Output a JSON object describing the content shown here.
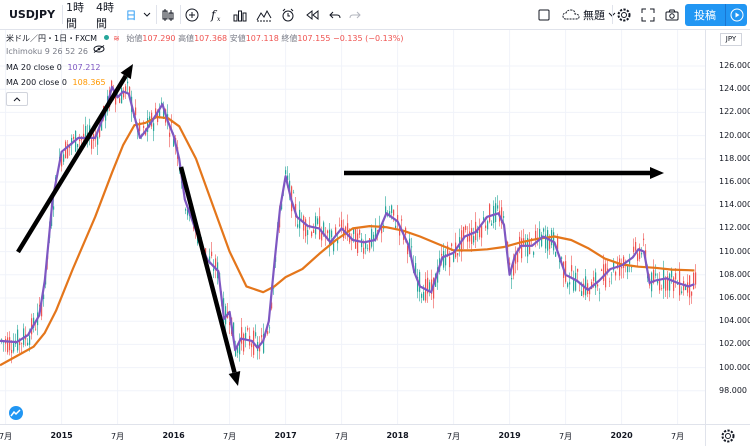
{
  "toolbar": {
    "symbol": "USDJPY",
    "intervals": [
      "1時間",
      "4時間",
      "日"
    ],
    "template_label": "無題",
    "post_label": "投稿"
  },
  "legend": {
    "title": "米ドル／円・1日・FXCM",
    "ohlc": {
      "open_label": "始値",
      "open": "107.290",
      "high_label": "高値",
      "high": "107.368",
      "low_label": "安値",
      "low": "107.118",
      "close_label": "終値",
      "close": "107.155",
      "change": "−0.135 (−0.13%)"
    },
    "indicators": [
      {
        "label": "Ichimoku 9 26 52 26",
        "value": ""
      },
      {
        "label": "MA 20 close 0",
        "value": "107.212"
      },
      {
        "label": "MA 200 close 0",
        "value": "108.365"
      }
    ]
  },
  "price_axis": {
    "currency": "JPY",
    "ticks": [
      "126.000",
      "124.000",
      "122.000",
      "120.000",
      "118.000",
      "116.000",
      "114.000",
      "112.000",
      "110.000",
      "108.000",
      "106.000",
      "104.000",
      "102.000",
      "100.000",
      "98.000"
    ]
  },
  "time_axis": {
    "ticks": [
      {
        "label": "7月",
        "year": 2014.5,
        "bold": false
      },
      {
        "label": "2015",
        "year": 2015.0,
        "bold": true
      },
      {
        "label": "7月",
        "year": 2015.5,
        "bold": false
      },
      {
        "label": "2016",
        "year": 2016.0,
        "bold": true
      },
      {
        "label": "7月",
        "year": 2016.5,
        "bold": false
      },
      {
        "label": "2017",
        "year": 2017.0,
        "bold": true
      },
      {
        "label": "7月",
        "year": 2017.5,
        "bold": false
      },
      {
        "label": "2018",
        "year": 2018.0,
        "bold": true
      },
      {
        "label": "7月",
        "year": 2018.5,
        "bold": false
      },
      {
        "label": "2019",
        "year": 2019.0,
        "bold": true
      },
      {
        "label": "7月",
        "year": 2019.5,
        "bold": false
      },
      {
        "label": "2020",
        "year": 2020.0,
        "bold": true
      },
      {
        "label": "7月",
        "year": 2020.5,
        "bold": false
      }
    ]
  },
  "chart_data": {
    "type": "line",
    "symbol": "USDJPY",
    "ylim": [
      97,
      128
    ],
    "xlim": [
      2014.45,
      2020.7
    ],
    "series": [
      {
        "name": "MA 20 close 0",
        "color": "#7e57c2",
        "x": [
          2014.45,
          2014.6,
          2014.7,
          2014.8,
          2014.85,
          2014.92,
          2015.0,
          2015.15,
          2015.3,
          2015.4,
          2015.45,
          2015.5,
          2015.55,
          2015.6,
          2015.7,
          2015.75,
          2015.85,
          2015.9,
          2015.95,
          2016.0,
          2016.05,
          2016.1,
          2016.2,
          2016.3,
          2016.4,
          2016.45,
          2016.5,
          2016.55,
          2016.6,
          2016.7,
          2016.75,
          2016.8,
          2016.85,
          2016.9,
          2016.95,
          2017.0,
          2017.05,
          2017.1,
          2017.2,
          2017.3,
          2017.4,
          2017.5,
          2017.6,
          2017.7,
          2017.8,
          2017.9,
          2018.0,
          2018.1,
          2018.15,
          2018.2,
          2018.3,
          2018.4,
          2018.5,
          2018.6,
          2018.7,
          2018.8,
          2018.9,
          2018.95,
          2019.0,
          2019.05,
          2019.1,
          2019.2,
          2019.3,
          2019.4,
          2019.5,
          2019.6,
          2019.7,
          2019.8,
          2019.9,
          2020.0,
          2020.1,
          2020.15,
          2020.2,
          2020.25,
          2020.3,
          2020.4,
          2020.5,
          2020.6,
          2020.65
        ],
        "values": [
          102.3,
          102.2,
          102.8,
          104.5,
          107.5,
          114.5,
          118.6,
          119.8,
          119.8,
          122.3,
          124.2,
          123.3,
          123.8,
          123.6,
          119.8,
          120.4,
          121.9,
          122.7,
          121.2,
          120.0,
          118.0,
          114.5,
          111.8,
          109.3,
          108.3,
          104.2,
          104.8,
          101.5,
          102.5,
          102.3,
          101.7,
          102.3,
          104.0,
          109.0,
          113.7,
          116.5,
          114.5,
          113.0,
          112.2,
          112.0,
          110.8,
          112.0,
          111.0,
          110.8,
          111.0,
          113.3,
          112.6,
          110.5,
          108.2,
          107.0,
          106.5,
          109.5,
          109.9,
          111.3,
          111.7,
          113.0,
          113.3,
          112.3,
          108.0,
          109.7,
          110.5,
          110.5,
          111.3,
          110.8,
          108.0,
          107.5,
          106.7,
          107.5,
          108.5,
          108.8,
          109.5,
          110.2,
          110.0,
          107.3,
          107.5,
          107.7,
          107.3,
          107.0,
          107.2
        ]
      },
      {
        "name": "MA 200 close 0",
        "color": "#e4761b",
        "x": [
          2014.45,
          2014.6,
          2014.75,
          2014.85,
          2014.95,
          2015.1,
          2015.3,
          2015.45,
          2015.55,
          2015.65,
          2015.75,
          2015.85,
          2015.95,
          2016.05,
          2016.2,
          2016.35,
          2016.5,
          2016.65,
          2016.8,
          2016.9,
          2017.0,
          2017.15,
          2017.3,
          2017.45,
          2017.6,
          2017.75,
          2017.9,
          2018.05,
          2018.2,
          2018.35,
          2018.5,
          2018.65,
          2018.8,
          2018.95,
          2019.1,
          2019.25,
          2019.4,
          2019.55,
          2019.7,
          2019.85,
          2020.0,
          2020.15,
          2020.3,
          2020.45,
          2020.6,
          2020.65
        ],
        "values": [
          100.2,
          101.0,
          101.8,
          103.0,
          104.9,
          108.5,
          113.0,
          116.8,
          119.2,
          120.9,
          121.1,
          121.6,
          121.5,
          120.8,
          118.0,
          114.0,
          110.0,
          107.0,
          106.5,
          107.0,
          107.8,
          108.5,
          109.8,
          111.0,
          112.0,
          112.2,
          112.1,
          111.8,
          111.3,
          110.7,
          110.1,
          110.1,
          110.2,
          110.4,
          110.8,
          111.1,
          111.3,
          111.0,
          110.3,
          109.4,
          108.9,
          108.7,
          108.6,
          108.45,
          108.4,
          108.37
        ]
      }
    ],
    "annotations": [
      "arrow-up-2014-2015",
      "arrow-down-2016",
      "arrow-right-2017-2020"
    ]
  },
  "colors": {
    "accent": "#2196f3",
    "ma20": "#7e57c2",
    "ma200": "#e4761b",
    "up": "#26a69a",
    "down": "#ef5350"
  }
}
